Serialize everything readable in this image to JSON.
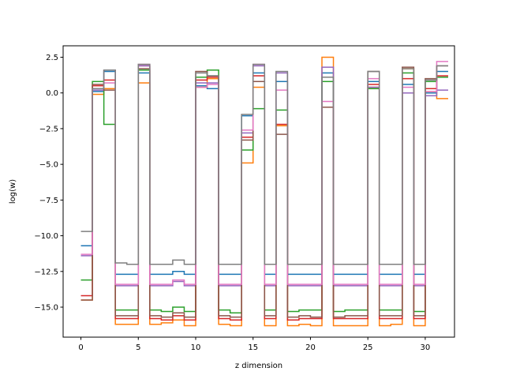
{
  "chart_data": {
    "type": "line",
    "step": "post",
    "xlabel": "z dimension",
    "ylabel": "log(w)",
    "xlim": [
      -1.55,
      32.55
    ],
    "ylim": [
      -17.1,
      3.3
    ],
    "xticks": [
      0,
      5,
      10,
      15,
      20,
      25,
      30
    ],
    "yticks": [
      2.5,
      0.0,
      -2.5,
      -5.0,
      -7.5,
      -10.0,
      -12.5,
      -15.0
    ],
    "ytick_labels": [
      "2.5",
      "0.0",
      "−2.5",
      "−5.0",
      "−7.5",
      "−10.0",
      "−12.5",
      "−15.0"
    ],
    "x": [
      0,
      1,
      2,
      3,
      4,
      5,
      6,
      7,
      8,
      9,
      10,
      11,
      12,
      13,
      14,
      15,
      16,
      17,
      18,
      19,
      20,
      21,
      22,
      23,
      24,
      25,
      26,
      27,
      28,
      29,
      30,
      31
    ],
    "series": [
      {
        "color": "#1f77b4",
        "values": [
          -10.7,
          0.1,
          1.5,
          -12.7,
          -12.7,
          1.4,
          -12.7,
          -12.7,
          -12.5,
          -12.7,
          0.5,
          0.3,
          -12.7,
          -12.7,
          -1.6,
          1.4,
          -12.7,
          0.8,
          -12.7,
          -12.7,
          -12.7,
          1.4,
          -12.7,
          -12.7,
          -12.7,
          0.8,
          -12.7,
          -12.7,
          0.6,
          -12.7,
          0.0,
          1.5
        ]
      },
      {
        "color": "#ff7f0e",
        "values": [
          -14.5,
          -0.1,
          0.3,
          -16.2,
          -16.2,
          0.7,
          -16.2,
          -16.1,
          -15.9,
          -16.3,
          0.4,
          1.0,
          -16.2,
          -16.3,
          -4.9,
          0.4,
          -16.3,
          -2.3,
          -16.3,
          -16.2,
          -16.3,
          2.5,
          -16.3,
          -16.3,
          -16.3,
          0.4,
          -16.3,
          -16.2,
          1.7,
          -16.3,
          0.1,
          -0.4
        ]
      },
      {
        "color": "#2ca02c",
        "values": [
          -13.1,
          0.8,
          -2.2,
          -15.2,
          -15.2,
          1.6,
          -15.2,
          -15.3,
          -15.0,
          -15.3,
          1.1,
          1.6,
          -15.2,
          -15.4,
          -4.0,
          -1.1,
          -15.2,
          -1.2,
          -15.3,
          -15.2,
          -15.2,
          0.8,
          -15.3,
          -15.2,
          -15.2,
          0.3,
          -15.2,
          -15.2,
          1.4,
          -15.3,
          0.8,
          1.1
        ]
      },
      {
        "color": "#d62728",
        "values": [
          -14.2,
          0.5,
          0.9,
          -15.8,
          -15.8,
          1.9,
          -15.8,
          -15.9,
          -15.6,
          -15.9,
          0.9,
          1.1,
          -15.8,
          -15.9,
          -3.1,
          1.2,
          -15.8,
          -2.2,
          -15.9,
          -15.8,
          -15.8,
          -1.0,
          -15.8,
          -15.8,
          -15.8,
          0.6,
          -15.8,
          -15.8,
          1.0,
          -15.8,
          0.3,
          1.2
        ]
      },
      {
        "color": "#9467bd",
        "values": [
          -11.4,
          0.2,
          1.6,
          -13.5,
          -13.5,
          1.9,
          -13.5,
          -13.5,
          -13.2,
          -13.5,
          0.7,
          0.7,
          -13.5,
          -13.5,
          -2.8,
          1.9,
          -13.5,
          1.4,
          -13.5,
          -13.5,
          -13.5,
          1.8,
          -13.5,
          -13.5,
          -13.5,
          0.4,
          -13.5,
          -13.5,
          0.0,
          -13.5,
          -0.2,
          0.2
        ]
      },
      {
        "color": "#8c564b",
        "values": [
          -14.5,
          0.6,
          0.2,
          -15.6,
          -15.6,
          1.7,
          -15.6,
          -15.7,
          -15.4,
          -15.7,
          1.5,
          1.2,
          -15.6,
          -15.7,
          -3.3,
          0.8,
          -15.6,
          -2.9,
          -15.7,
          -15.6,
          -15.7,
          -1.0,
          -15.7,
          -15.6,
          -15.6,
          1.5,
          -15.6,
          -15.6,
          1.8,
          -15.6,
          1.0,
          1.9
        ]
      },
      {
        "color": "#e377c2",
        "values": [
          -11.3,
          0.3,
          0.7,
          -13.4,
          -13.4,
          2.0,
          -13.4,
          -13.4,
          -13.1,
          -13.4,
          0.4,
          0.6,
          -13.4,
          -13.4,
          -2.6,
          2.0,
          -13.4,
          0.2,
          -13.4,
          -13.4,
          -13.4,
          -0.6,
          -13.4,
          -13.4,
          -13.4,
          1.0,
          -13.4,
          -13.4,
          0.4,
          -13.4,
          0.1,
          2.2
        ]
      },
      {
        "color": "#7f7f7f",
        "values": [
          -9.7,
          0.3,
          1.6,
          -11.9,
          -12.0,
          2.0,
          -12.0,
          -12.0,
          -11.7,
          -12.0,
          1.4,
          1.2,
          -12.0,
          -12.0,
          -1.5,
          2.0,
          -12.0,
          1.5,
          -12.0,
          -12.0,
          -12.0,
          1.1,
          -12.0,
          -12.0,
          -12.0,
          1.5,
          -12.0,
          -12.0,
          1.7,
          -12.0,
          0.9,
          1.9
        ]
      }
    ]
  }
}
